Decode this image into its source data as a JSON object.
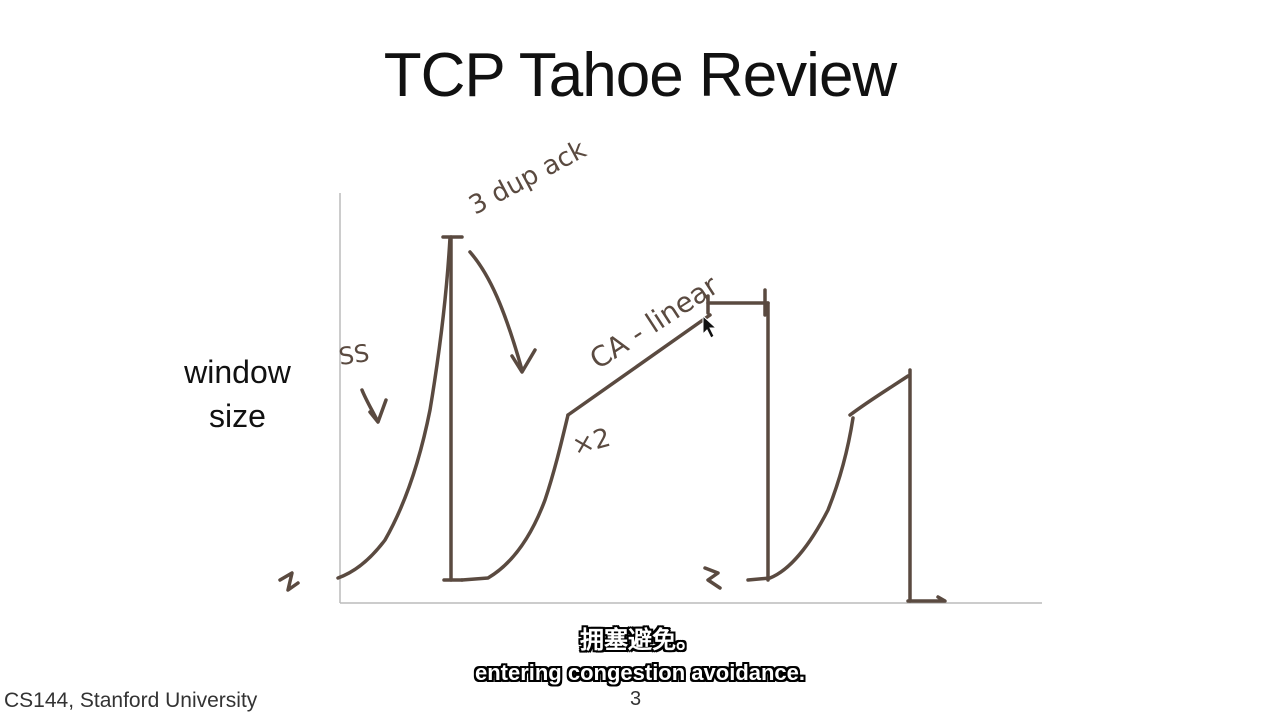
{
  "slide": {
    "title": "TCP Tahoe Review",
    "axis_label_line1": "window",
    "axis_label_line2": "size",
    "footer": "CS144, Stanford University",
    "page_number": "3"
  },
  "annotations": {
    "ss": "SS",
    "three_dup_acks": "3 dup ack",
    "ca_linear": "CA - linear",
    "x_two": "×2"
  },
  "subtitles": {
    "chinese": "拥塞避免。",
    "english": "entering congestion avoidance."
  },
  "colors": {
    "ink": "#5a4a40",
    "axis": "#bbbbbb",
    "text": "#111111"
  }
}
